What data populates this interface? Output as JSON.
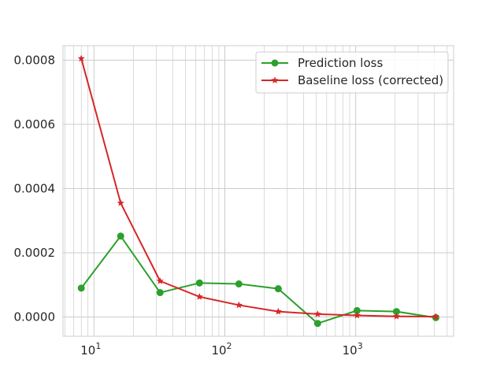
{
  "chart_data": {
    "type": "line",
    "xscale": "log",
    "x": [
      8,
      16,
      32,
      64,
      128,
      256,
      512,
      1024,
      2048,
      4096
    ],
    "xlim": [
      5.8,
      5600
    ],
    "ylim": [
      -6e-05,
      0.000845
    ],
    "y_ticks": [
      0.0,
      0.0002,
      0.0004,
      0.0006,
      0.0008
    ],
    "y_tick_labels": [
      "0.0000",
      "0.0002",
      "0.0004",
      "0.0006",
      "0.0008"
    ],
    "x_ticks": [
      10,
      100,
      1000
    ],
    "x_tick_labels": [
      {
        "base": "10",
        "exp": "1"
      },
      {
        "base": "10",
        "exp": "2"
      },
      {
        "base": "10",
        "exp": "3"
      }
    ],
    "grid": true,
    "legend_position": "top-right",
    "title": "",
    "xlabel": "",
    "ylabel": "",
    "series": [
      {
        "name": "Prediction loss",
        "color": "#2ca02c",
        "marker": "circle",
        "values": [
          9e-05,
          0.000252,
          7.6e-05,
          0.000106,
          0.000103,
          8.8e-05,
          -2e-05,
          2e-05,
          1.7e-05,
          -2e-06
        ]
      },
      {
        "name": "Baseline loss (corrected)",
        "color": "#d62728",
        "marker": "star",
        "values": [
          0.000805,
          0.000355,
          0.000112,
          6.3e-05,
          3.7e-05,
          1.7e-05,
          9e-06,
          5e-06,
          2e-06,
          1e-06
        ]
      }
    ]
  }
}
